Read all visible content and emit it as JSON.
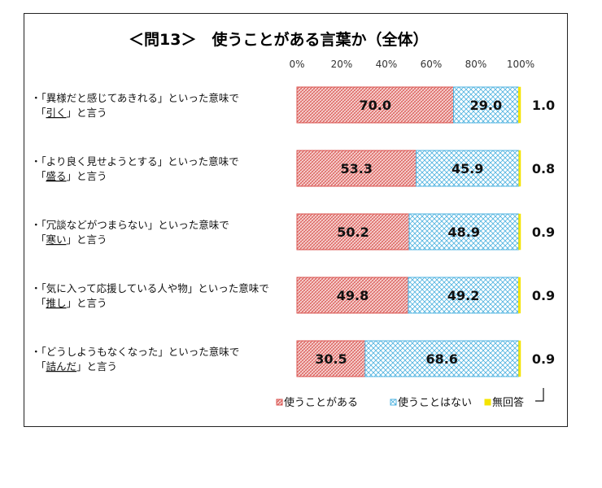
{
  "chart_data": {
    "type": "bar",
    "orientation": "horizontal",
    "stacked": true,
    "title": "＜問13＞　使うことがある言葉か（全体）",
    "xlim": [
      0,
      100
    ],
    "ticks": [
      "0%",
      "20%",
      "40%",
      "60%",
      "80%",
      "100%"
    ],
    "categories": [
      {
        "line1": "・「異様だと感じてあきれる」といった意味で",
        "line2_pre": "「",
        "word": "引く",
        "line2_post": "」と言う"
      },
      {
        "line1": "・「より良く見せようとする」といった意味で",
        "line2_pre": "「",
        "word": "盛る",
        "line2_post": "」と言う"
      },
      {
        "line1": "・「冗談などがつまらない」といった意味で",
        "line2_pre": "「",
        "word": "寒い",
        "line2_post": "」と言う"
      },
      {
        "line1": "・「気に入って応援している人や物」といった意味で",
        "line2_pre": "「",
        "word": "推し",
        "line2_post": "」と言う"
      },
      {
        "line1": "・「どうしようもなくなった」といった意味で",
        "line2_pre": "「",
        "word": "詰んだ",
        "line2_post": "」と言う"
      }
    ],
    "series": [
      {
        "name": "使うことがある",
        "color": "#d9534f",
        "values": [
          70.0,
          53.3,
          50.2,
          49.8,
          30.5
        ],
        "labels": [
          "70.0",
          "53.3",
          "50.2",
          "49.8",
          "30.5"
        ]
      },
      {
        "name": "使うことはない",
        "color": "#4fb3e0",
        "values": [
          29.0,
          45.9,
          48.9,
          49.2,
          68.6
        ],
        "labels": [
          "29.0",
          "45.9",
          "48.9",
          "49.2",
          "68.6"
        ]
      },
      {
        "name": "無回答",
        "color": "#f5e400",
        "values": [
          1.0,
          0.8,
          0.9,
          0.9,
          0.9
        ],
        "labels": [
          "1.0",
          "0.8",
          "0.9",
          "0.9",
          "0.9"
        ]
      }
    ],
    "legend": [
      "使うことがある",
      "使うことはない",
      "無回答"
    ],
    "legend_position": "bottom-right"
  }
}
